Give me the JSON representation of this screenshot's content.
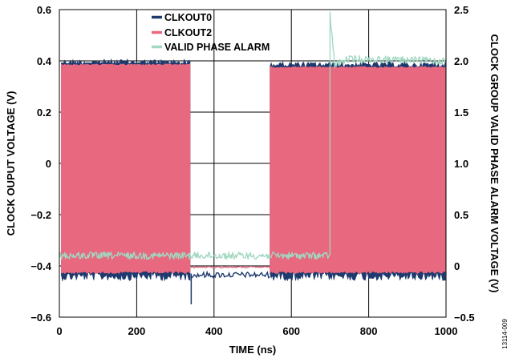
{
  "chart_data": {
    "type": "line",
    "xlabel": "TIME (ns)",
    "ylabel": "CLOCK OUPUT VOLTAGE (V)",
    "y2label": "CLOCK GROUP VALID PHASE ALARM VOLTAGE (V)",
    "xlim": [
      0,
      1000
    ],
    "ylim": [
      -0.6,
      0.6
    ],
    "y2lim": [
      -0.5,
      2.5
    ],
    "x_ticks": [
      "0",
      "200",
      "400",
      "600",
      "800",
      "1000"
    ],
    "y_ticks": [
      "−0.6",
      "−0.4",
      "−0.2",
      "0",
      "0.2",
      "0.4",
      "0.6"
    ],
    "y2_ticks": [
      "−0.5",
      "0",
      "0.5",
      "1.0",
      "1.5",
      "2.0",
      "2.5"
    ],
    "grid": true,
    "legend_position": "top",
    "figure_id": "13114-009",
    "series": [
      {
        "name": "CLKOUT0",
        "color": "#1f3a6e",
        "axis": "left",
        "segments": [
          {
            "type": "band",
            "x": [
              5,
              340
            ],
            "low": -0.44,
            "high": 0.395
          },
          {
            "type": "line",
            "x": [
              340,
              545
            ],
            "y": -0.435
          },
          {
            "type": "band",
            "x": [
              545,
              1000
            ],
            "low": -0.44,
            "high": 0.385
          }
        ],
        "glitches": [
          {
            "x": 341,
            "y": -0.55
          }
        ]
      },
      {
        "name": "CLKOUT2",
        "color": "#e8687f",
        "axis": "left",
        "segments": [
          {
            "type": "band",
            "x": [
              5,
              340
            ],
            "low": -0.425,
            "high": 0.385
          },
          {
            "type": "line",
            "x": [
              340,
              545
            ],
            "y": -0.405
          },
          {
            "type": "band",
            "x": [
              545,
              1000
            ],
            "low": -0.425,
            "high": 0.375
          }
        ]
      },
      {
        "name": "VALID PHASE ALARM",
        "color": "#a0d8c0",
        "axis": "right",
        "points": [
          [
            0,
            0.1
          ],
          [
            700,
            0.1
          ],
          [
            700,
            2.45
          ],
          [
            712,
            1.96
          ],
          [
            750,
            2.02
          ],
          [
            1000,
            2.0
          ]
        ]
      }
    ]
  }
}
